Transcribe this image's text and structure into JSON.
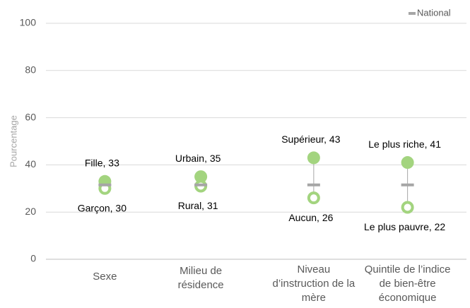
{
  "chart_data": {
    "type": "dot",
    "y_label": "Pourcentage",
    "categories": [
      [
        "Sexe"
      ],
      [
        "Milieu de",
        "résidence"
      ],
      [
        "Niveau",
        "d’instruction de la",
        "mère"
      ],
      [
        "Quintile de l’indice",
        "de bien-être",
        "économique"
      ]
    ],
    "series": [
      {
        "marker": "filled",
        "color": "#a3d47f",
        "values": [
          33,
          35,
          43,
          41
        ],
        "value_labels": [
          "Fille, 33",
          "Urbain, 35",
          "Supérieur, 43",
          "Le plus riche, 41"
        ]
      },
      {
        "marker": "open",
        "color": "#a3d47f",
        "values": [
          30,
          31,
          26,
          22
        ],
        "value_labels": [
          "Garçon, 30",
          "Rural, 31",
          "Aucun, 26",
          "Le plus pauvre, 22"
        ]
      },
      {
        "name": "National",
        "marker": "dash",
        "color": "#a6a6a6",
        "values": [
          31.5,
          31.5,
          31.5,
          31.5
        ]
      }
    ],
    "ylim": [
      0,
      100
    ],
    "yticks": [
      0,
      20,
      40,
      60,
      80,
      100
    ],
    "grid": true,
    "legend": "top-right"
  }
}
